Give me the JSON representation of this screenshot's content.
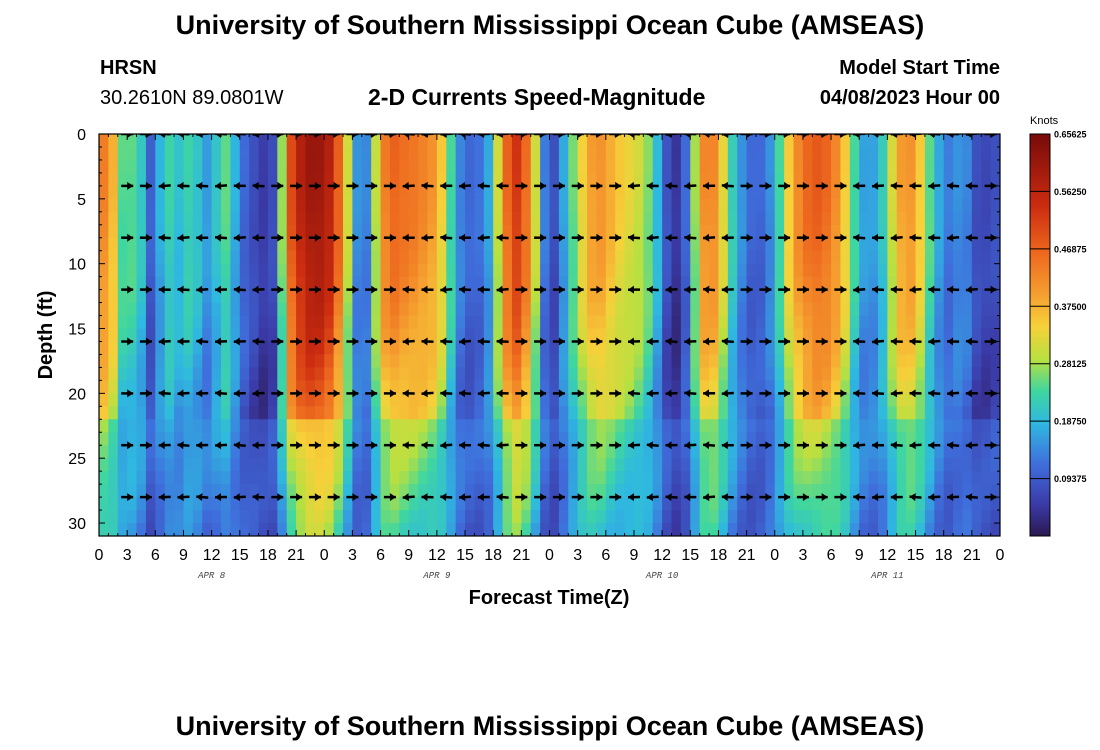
{
  "page": {
    "title": "University of Southern Mississippi Ocean Cube (AMSEAS)",
    "station": "HRSN",
    "coords": "30.2610N  89.0801W",
    "subtitle": "2-D Currents Speed-Magnitude",
    "model_start_label": "Model Start Time",
    "model_start_value": "04/08/2023 Hour 00",
    "footer_title": "University of Southern Mississippi Ocean Cube (AMSEAS)"
  },
  "chart_data": {
    "type": "heatmap",
    "title": "2-D Currents Speed-Magnitude",
    "xlabel": "Forecast Time(Z)",
    "ylabel": "Depth (ft)",
    "x_range_hours": [
      0,
      96
    ],
    "ylim": [
      0,
      31
    ],
    "y_ticks": [
      0,
      5,
      10,
      15,
      20,
      25,
      30
    ],
    "x_tick_labels": [
      "0",
      "3",
      "6",
      "9",
      "12",
      "15",
      "18",
      "21",
      "0",
      "3",
      "6",
      "9",
      "12",
      "15",
      "18",
      "21",
      "0",
      "3",
      "6",
      "9",
      "12",
      "15",
      "18",
      "21",
      "0",
      "3",
      "6",
      "9",
      "12",
      "15",
      "18",
      "21",
      "0"
    ],
    "day_labels": [
      {
        "label": "APR 8",
        "hour": 12
      },
      {
        "label": "APR 9",
        "hour": 36
      },
      {
        "label": "APR 10",
        "hour": 60
      },
      {
        "label": "APR 11",
        "hour": 84
      }
    ],
    "colorbar": {
      "title": "Knots",
      "min": 0.0,
      "max": 0.65625,
      "labels": [
        "0.65625",
        "0.56250",
        "0.46875",
        "0.37500",
        "0.28125",
        "0.18750",
        "0.09375"
      ],
      "label_values": [
        0.65625,
        0.5625,
        0.46875,
        0.375,
        0.28125,
        0.1875,
        0.09375
      ]
    },
    "speed_profile_by_hour": [
      {
        "h": 0,
        "s": 0.42
      },
      {
        "h": 1,
        "s": 0.45
      },
      {
        "h": 2,
        "s": 0.3
      },
      {
        "h": 3,
        "s": 0.2
      },
      {
        "h": 4,
        "s": 0.3
      },
      {
        "h": 5,
        "s": 0.12
      },
      {
        "h": 6,
        "s": 0.08
      },
      {
        "h": 7,
        "s": 0.28
      },
      {
        "h": 8,
        "s": 0.18
      },
      {
        "h": 9,
        "s": 0.22
      },
      {
        "h": 10,
        "s": 0.24
      },
      {
        "h": 11,
        "s": 0.17
      },
      {
        "h": 12,
        "s": 0.15
      },
      {
        "h": 13,
        "s": 0.26
      },
      {
        "h": 14,
        "s": 0.24
      },
      {
        "h": 15,
        "s": 0.12
      },
      {
        "h": 16,
        "s": 0.1
      },
      {
        "h": 17,
        "s": 0.06
      },
      {
        "h": 18,
        "s": 0.05
      },
      {
        "h": 19,
        "s": 0.1
      },
      {
        "h": 20,
        "s": 0.45
      },
      {
        "h": 21,
        "s": 0.55
      },
      {
        "h": 22,
        "s": 0.6
      },
      {
        "h": 23,
        "s": 0.62
      },
      {
        "h": 24,
        "s": 0.6
      },
      {
        "h": 25,
        "s": 0.55
      },
      {
        "h": 26,
        "s": 0.4
      },
      {
        "h": 27,
        "s": 0.22
      },
      {
        "h": 28,
        "s": 0.08
      },
      {
        "h": 29,
        "s": 0.2
      },
      {
        "h": 30,
        "s": 0.4
      },
      {
        "h": 31,
        "s": 0.48
      },
      {
        "h": 32,
        "s": 0.46
      },
      {
        "h": 33,
        "s": 0.45
      },
      {
        "h": 34,
        "s": 0.44
      },
      {
        "h": 35,
        "s": 0.42
      },
      {
        "h": 36,
        "s": 0.4
      },
      {
        "h": 37,
        "s": 0.3
      },
      {
        "h": 38,
        "s": 0.18
      },
      {
        "h": 39,
        "s": 0.1
      },
      {
        "h": 40,
        "s": 0.12
      },
      {
        "h": 41,
        "s": 0.12
      },
      {
        "h": 42,
        "s": 0.22
      },
      {
        "h": 43,
        "s": 0.4
      },
      {
        "h": 44,
        "s": 0.54
      },
      {
        "h": 45,
        "s": 0.52
      },
      {
        "h": 46,
        "s": 0.4
      },
      {
        "h": 47,
        "s": 0.22
      },
      {
        "h": 48,
        "s": 0.04
      },
      {
        "h": 49,
        "s": 0.12
      },
      {
        "h": 50,
        "s": 0.22
      },
      {
        "h": 51,
        "s": 0.3
      },
      {
        "h": 52,
        "s": 0.38
      },
      {
        "h": 53,
        "s": 0.42
      },
      {
        "h": 54,
        "s": 0.4
      },
      {
        "h": 55,
        "s": 0.36
      },
      {
        "h": 56,
        "s": 0.34
      },
      {
        "h": 57,
        "s": 0.32
      },
      {
        "h": 58,
        "s": 0.3
      },
      {
        "h": 59,
        "s": 0.24
      },
      {
        "h": 60,
        "s": 0.14
      },
      {
        "h": 61,
        "s": 0.03
      },
      {
        "h": 62,
        "s": 0.06
      },
      {
        "h": 63,
        "s": 0.16
      },
      {
        "h": 64,
        "s": 0.4
      },
      {
        "h": 65,
        "s": 0.45
      },
      {
        "h": 66,
        "s": 0.4
      },
      {
        "h": 67,
        "s": 0.26
      },
      {
        "h": 68,
        "s": 0.18
      },
      {
        "h": 69,
        "s": 0.12
      },
      {
        "h": 70,
        "s": 0.1
      },
      {
        "h": 71,
        "s": 0.12
      },
      {
        "h": 72,
        "s": 0.18
      },
      {
        "h": 73,
        "s": 0.3
      },
      {
        "h": 74,
        "s": 0.4
      },
      {
        "h": 75,
        "s": 0.45
      },
      {
        "h": 76,
        "s": 0.48
      },
      {
        "h": 77,
        "s": 0.48
      },
      {
        "h": 78,
        "s": 0.45
      },
      {
        "h": 79,
        "s": 0.4
      },
      {
        "h": 80,
        "s": 0.3
      },
      {
        "h": 81,
        "s": 0.18
      },
      {
        "h": 82,
        "s": 0.15
      },
      {
        "h": 83,
        "s": 0.18
      },
      {
        "h": 84,
        "s": 0.25
      },
      {
        "h": 85,
        "s": 0.38
      },
      {
        "h": 86,
        "s": 0.42
      },
      {
        "h": 87,
        "s": 0.4
      },
      {
        "h": 88,
        "s": 0.3
      },
      {
        "h": 89,
        "s": 0.2
      },
      {
        "h": 90,
        "s": 0.14
      },
      {
        "h": 91,
        "s": 0.12
      },
      {
        "h": 92,
        "s": 0.18
      },
      {
        "h": 93,
        "s": 0.1
      },
      {
        "h": 94,
        "s": 0.06
      },
      {
        "h": 95,
        "s": 0.08
      },
      {
        "h": 96,
        "s": 0.08
      }
    ],
    "arrow_depths_ft": [
      0,
      4,
      8,
      12,
      16,
      20,
      24,
      28
    ],
    "arrow_hours": [
      3,
      5,
      7,
      9,
      11,
      13,
      15,
      17,
      19,
      21,
      23,
      25,
      27,
      29,
      31,
      33,
      35,
      37,
      39,
      41,
      43,
      45,
      47,
      49,
      51,
      53,
      55,
      57,
      59,
      61,
      63,
      65,
      67,
      69,
      71,
      73,
      75,
      77,
      79,
      81,
      83,
      85,
      87,
      89,
      91,
      93,
      95
    ]
  }
}
